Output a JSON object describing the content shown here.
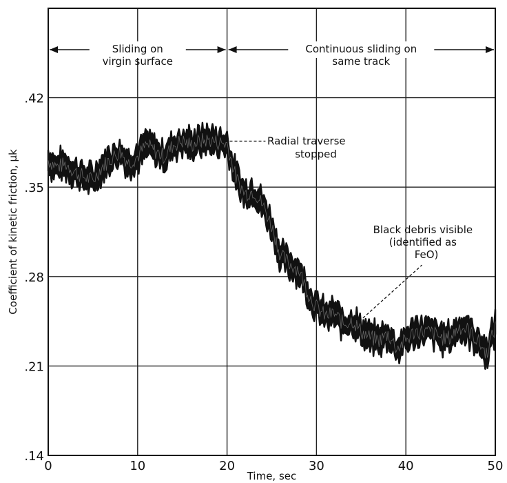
{
  "chart_data": {
    "type": "line",
    "xlabel": "Time, sec",
    "ylabel": "Coefficient of kinetic friction, μk",
    "xlim": [
      0,
      50
    ],
    "ylim": [
      0.14,
      0.49
    ],
    "x_ticks": [
      "0",
      "10",
      "20",
      "30",
      "40",
      "50"
    ],
    "y_ticks": [
      ".14",
      ".21",
      ".28",
      ".35",
      ".42"
    ],
    "grid": true,
    "x": [
      0,
      1,
      2,
      3,
      4,
      5,
      6,
      7,
      8,
      9,
      10,
      11,
      12,
      13,
      14,
      15,
      16,
      17,
      18,
      19,
      20,
      21,
      22,
      23,
      24,
      25,
      26,
      27,
      28,
      29,
      30,
      31,
      32,
      33,
      34,
      35,
      36,
      37,
      38,
      39,
      40,
      41,
      42,
      43,
      44,
      45,
      46,
      47,
      48,
      49,
      50
    ],
    "series": [
      {
        "values": [
          0.371,
          0.366,
          0.368,
          0.362,
          0.358,
          0.355,
          0.366,
          0.372,
          0.378,
          0.369,
          0.374,
          0.383,
          0.378,
          0.374,
          0.383,
          0.386,
          0.383,
          0.386,
          0.387,
          0.385,
          0.384,
          0.357,
          0.345,
          0.347,
          0.336,
          0.32,
          0.296,
          0.29,
          0.286,
          0.268,
          0.256,
          0.249,
          0.251,
          0.243,
          0.246,
          0.237,
          0.232,
          0.23,
          0.235,
          0.224,
          0.23,
          0.237,
          0.237,
          0.236,
          0.232,
          0.232,
          0.241,
          0.238,
          0.23,
          0.22,
          0.24
        ],
        "band": 0.008
      }
    ],
    "annotations": {
      "virgin": [
        "Sliding on",
        "virgin surface"
      ],
      "continuous": [
        "Continuous sliding on",
        "same track"
      ],
      "radial": [
        "Radial traverse",
        "stopped"
      ],
      "debris": [
        "Black debris visible",
        "(identified as",
        "FeO)"
      ]
    }
  }
}
